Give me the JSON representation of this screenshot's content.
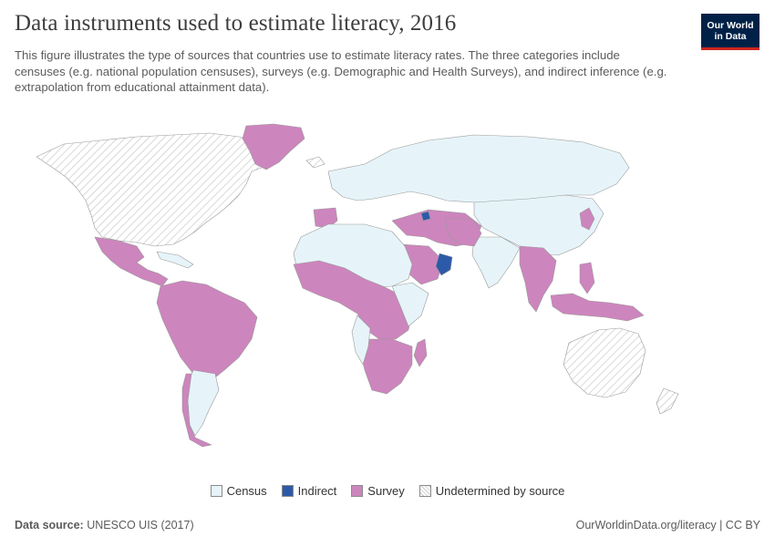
{
  "title": "Data instruments used to estimate literacy, 2016",
  "subtitle": "This figure illustrates the type of sources that countries use to estimate literacy rates. The three categories include censuses (e.g. national population censuses), surveys (e.g. Demographic and Health Surveys), and indirect inference (e.g. extrapolation from educational attainment data).",
  "logo": {
    "line1": "Our World",
    "line2": "in Data"
  },
  "legend": [
    {
      "label": "Census",
      "color": "#e6f4f9",
      "pattern": "solid"
    },
    {
      "label": "Indirect",
      "color": "#2d5aa8",
      "pattern": "solid"
    },
    {
      "label": "Survey",
      "color": "#cd85bd",
      "pattern": "solid"
    },
    {
      "label": "Undetermined by source",
      "color": "#ffffff",
      "pattern": "hatched"
    }
  ],
  "footer": {
    "source_label": "Data source:",
    "source_value": "UNESCO UIS (2017)",
    "link": "OurWorldinData.org/literacy | CC BY"
  }
}
